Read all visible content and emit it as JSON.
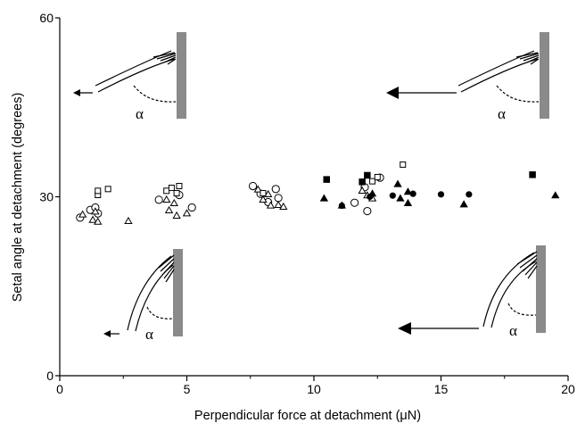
{
  "chart_data": {
    "type": "scatter",
    "title": "",
    "xlabel": "Perpendicular force at detachment (μN)",
    "ylabel": "Setal angle at detachment (degrees)",
    "xlim": [
      0,
      20
    ],
    "ylim": [
      0,
      60
    ],
    "x_ticks": [
      "0",
      "5",
      "10",
      "15",
      "20"
    ],
    "y_ticks": [
      "0",
      "30",
      "60"
    ],
    "grid": false,
    "legend": "none",
    "series": [
      {
        "marker": "open-circle",
        "points": [
          [
            0.8,
            26.5
          ],
          [
            1.2,
            27.8
          ],
          [
            1.4,
            28.2
          ],
          [
            1.5,
            27.2
          ],
          [
            3.9,
            29.5
          ],
          [
            4.7,
            30.3
          ],
          [
            5.2,
            28.2
          ],
          [
            7.6,
            31.8
          ],
          [
            7.9,
            30.5
          ],
          [
            8.2,
            29.1
          ],
          [
            8.6,
            29.8
          ],
          [
            8.5,
            31.3
          ],
          [
            11.6,
            29.0
          ],
          [
            12.0,
            31.6
          ],
          [
            12.1,
            27.6
          ],
          [
            12.6,
            33.2
          ]
        ]
      },
      {
        "marker": "open-triangle",
        "points": [
          [
            0.9,
            27.1
          ],
          [
            1.3,
            26.2
          ],
          [
            1.5,
            25.9
          ],
          [
            1.4,
            27.6
          ],
          [
            2.7,
            26.0
          ],
          [
            4.3,
            27.8
          ],
          [
            4.6,
            26.9
          ],
          [
            4.2,
            29.6
          ],
          [
            4.5,
            29.0
          ],
          [
            5.0,
            27.3
          ],
          [
            7.8,
            31.3
          ],
          [
            8.2,
            30.5
          ],
          [
            8.3,
            28.6
          ],
          [
            8.0,
            29.6
          ],
          [
            8.6,
            28.7
          ],
          [
            8.8,
            28.4
          ],
          [
            12.1,
            30.3
          ],
          [
            11.9,
            31.1
          ],
          [
            12.3,
            29.8
          ]
        ]
      },
      {
        "marker": "open-square",
        "points": [
          [
            1.5,
            30.3
          ],
          [
            1.5,
            31.0
          ],
          [
            1.9,
            31.3
          ],
          [
            4.2,
            31.0
          ],
          [
            4.4,
            31.5
          ],
          [
            4.6,
            30.6
          ],
          [
            4.7,
            31.8
          ],
          [
            8.0,
            30.6
          ],
          [
            12.3,
            32.6
          ],
          [
            12.5,
            33.3
          ],
          [
            13.5,
            35.4
          ]
        ]
      },
      {
        "marker": "filled-circle",
        "points": [
          [
            11.1,
            28.5
          ],
          [
            12.2,
            30.0
          ],
          [
            13.1,
            30.2
          ],
          [
            13.9,
            30.5
          ],
          [
            15.0,
            30.4
          ],
          [
            16.1,
            30.4
          ]
        ]
      },
      {
        "marker": "filled-triangle",
        "points": [
          [
            10.4,
            29.8
          ],
          [
            11.1,
            28.6
          ],
          [
            12.3,
            30.6
          ],
          [
            13.3,
            32.2
          ],
          [
            13.4,
            29.8
          ],
          [
            13.7,
            29.0
          ],
          [
            13.7,
            30.9
          ],
          [
            15.9,
            28.8
          ],
          [
            19.5,
            30.3
          ]
        ]
      },
      {
        "marker": "filled-square",
        "points": [
          [
            10.5,
            32.9
          ],
          [
            11.9,
            32.5
          ],
          [
            12.1,
            33.6
          ],
          [
            18.6,
            33.7
          ]
        ]
      }
    ],
    "annotations": [
      "α",
      "α",
      "α",
      "α"
    ]
  }
}
